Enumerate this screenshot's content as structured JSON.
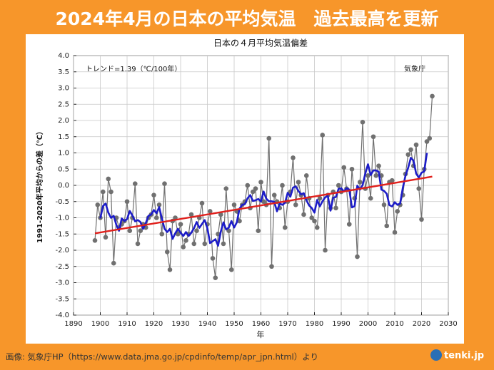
{
  "header": {
    "title": "2024年4月の日本の平均気温　過去最高を更新"
  },
  "footer": {
    "credit": "画像: 気象庁HP（https://www.data.jma.go.jp/cpdinfo/temp/apr_jpn.html）より",
    "logo": "tenki.jp"
  },
  "chart_data": {
    "type": "line",
    "title": "日本の４月平均気温偏差",
    "xlabel": "年",
    "ylabel": "1991-2020年平均からの差（℃）",
    "annotations": [
      "トレンド=1.39（℃/100年）",
      "気象庁"
    ],
    "xlim": [
      1890,
      2030
    ],
    "xticks": [
      1890,
      1900,
      1910,
      1920,
      1930,
      1940,
      1950,
      1960,
      1970,
      1980,
      1990,
      2000,
      2010,
      2020,
      2030
    ],
    "ylim": [
      -4,
      4
    ],
    "yticks": [
      {
        "value": 4,
        "label": "4.0"
      },
      3.5,
      {
        "value": 3,
        "label": "3.0"
      },
      2.5,
      {
        "value": 2,
        "label": "2.0"
      },
      1.5,
      {
        "value": 1,
        "label": "1.0"
      },
      0.5,
      {
        "value": 0,
        "label": "0.0"
      },
      -0.5,
      {
        "value": -1,
        "label": "-1.0"
      },
      -1.5,
      {
        "value": -2,
        "label": "-2.0"
      },
      -2.5,
      {
        "value": -3,
        "label": "-3.0"
      },
      -3.5,
      {
        "value": -4,
        "label": "-4.0"
      }
    ],
    "grid": true,
    "x": [
      1898,
      1899,
      1900,
      1901,
      1902,
      1903,
      1904,
      1905,
      1906,
      1907,
      1908,
      1909,
      1910,
      1911,
      1912,
      1913,
      1914,
      1915,
      1916,
      1917,
      1918,
      1919,
      1920,
      1921,
      1922,
      1923,
      1924,
      1925,
      1926,
      1927,
      1928,
      1929,
      1930,
      1931,
      1932,
      1933,
      1934,
      1935,
      1936,
      1937,
      1938,
      1939,
      1940,
      1941,
      1942,
      1943,
      1944,
      1945,
      1946,
      1947,
      1948,
      1949,
      1950,
      1951,
      1952,
      1953,
      1954,
      1955,
      1956,
      1957,
      1958,
      1959,
      1960,
      1961,
      1962,
      1963,
      1964,
      1965,
      1966,
      1967,
      1968,
      1969,
      1970,
      1971,
      1972,
      1973,
      1974,
      1975,
      1976,
      1977,
      1978,
      1979,
      1980,
      1981,
      1982,
      1983,
      1984,
      1985,
      1986,
      1987,
      1988,
      1989,
      1990,
      1991,
      1992,
      1993,
      1994,
      1995,
      1996,
      1997,
      1998,
      1999,
      2000,
      2001,
      2002,
      2003,
      2004,
      2005,
      2006,
      2007,
      2008,
      2009,
      2010,
      2011,
      2012,
      2013,
      2014,
      2015,
      2016,
      2017,
      2018,
      2019,
      2020,
      2021,
      2022,
      2023,
      2024
    ],
    "series": [
      {
        "color": "#707070",
        "marker": true,
        "width": 1.2,
        "values": [
          -1.7,
          -0.6,
          -1.0,
          -0.2,
          -1.6,
          0.2,
          -0.2,
          -2.4,
          -1.0,
          -1.3,
          -1.2,
          -1.1,
          -0.5,
          -1.4,
          -1.0,
          0.05,
          -1.8,
          -1.4,
          -1.2,
          -1.3,
          -1.0,
          -0.9,
          -0.3,
          -1.0,
          -0.6,
          -1.5,
          0.05,
          -2.05,
          -2.6,
          -1.1,
          -1.0,
          -1.5,
          -1.2,
          -1.9,
          -1.7,
          -1.5,
          -0.9,
          -1.8,
          -1.4,
          -1.0,
          -0.55,
          -1.8,
          -1.2,
          -0.8,
          -2.25,
          -2.85,
          -1.5,
          -0.9,
          -1.8,
          -0.1,
          -1.4,
          -2.6,
          -0.6,
          -0.8,
          -1.1,
          -0.6,
          -0.5,
          0.0,
          -0.7,
          -0.2,
          -0.1,
          -1.4,
          0.1,
          -0.5,
          -0.6,
          1.45,
          -2.5,
          -0.3,
          -0.5,
          -0.7,
          0.0,
          -1.3,
          -0.5,
          -0.2,
          0.85,
          -0.6,
          0.1,
          -0.3,
          -0.9,
          0.3,
          -0.4,
          -1.0,
          -1.1,
          -1.3,
          -0.4,
          1.55,
          -2.0,
          -0.3,
          -0.7,
          -0.2,
          -0.7,
          0.0,
          -0.2,
          0.55,
          -0.1,
          -1.2,
          0.5,
          -0.4,
          -2.2,
          0.1,
          1.95,
          -0.1,
          0.3,
          -0.4,
          1.5,
          0.3,
          0.6,
          0.3,
          -0.6,
          -1.25,
          0.1,
          0.15,
          -1.45,
          -0.8,
          -0.6,
          -0.3,
          0.35,
          0.95,
          1.1,
          0.6,
          1.25,
          -0.1,
          -1.05,
          0.5,
          1.35,
          1.45,
          2.75
        ]
      },
      {
        "color": "#1c1cc8",
        "marker": false,
        "width": 2.6,
        "values": [
          null,
          null,
          -1.02,
          -0.64,
          -0.56,
          -0.84,
          -1.0,
          -0.94,
          -1.22,
          -1.4,
          -1.02,
          -1.1,
          -1.04,
          -0.79,
          -0.93,
          -1.11,
          -1.07,
          -1.13,
          -1.34,
          -1.16,
          -0.94,
          -0.9,
          -0.76,
          -0.86,
          -0.67,
          -1.02,
          -1.34,
          -1.44,
          -1.34,
          -1.65,
          -1.48,
          -1.34,
          -1.46,
          -1.56,
          -1.44,
          -1.56,
          -1.46,
          -1.32,
          -1.13,
          -1.31,
          -1.19,
          -1.07,
          -1.32,
          -1.78,
          -1.72,
          -1.66,
          -1.86,
          -1.43,
          -1.14,
          -1.36,
          -1.3,
          -1.1,
          -1.3,
          -1.14,
          -0.72,
          -0.6,
          -0.58,
          -0.4,
          -0.3,
          -0.48,
          -0.46,
          -0.42,
          -0.5,
          -0.19,
          -0.41,
          -0.49,
          -0.49,
          -0.51,
          -0.8,
          -0.56,
          -0.6,
          -0.54,
          -0.23,
          -0.35,
          -0.07,
          -0.03,
          -0.17,
          -0.28,
          -0.24,
          -0.46,
          -0.62,
          -0.7,
          -0.84,
          -0.45,
          -0.65,
          -0.49,
          -0.37,
          -0.33,
          -0.78,
          -0.38,
          -0.36,
          -0.11,
          -0.09,
          -0.19,
          -0.09,
          -0.13,
          -0.68,
          -0.64,
          -0.01,
          -0.13,
          0.01,
          0.37,
          0.65,
          0.32,
          0.46,
          0.46,
          0.42,
          -0.13,
          -0.17,
          -0.26,
          -0.61,
          -0.65,
          -0.52,
          -0.6,
          -0.56,
          -0.08,
          0.3,
          0.54,
          0.85,
          0.76,
          0.36,
          0.24,
          0.39,
          0.43,
          1.0,
          null,
          null
        ]
      },
      {
        "color": "#e0201c",
        "marker": false,
        "width": 2.4,
        "x": [
          1898,
          2024
        ],
        "values": [
          -1.48,
          0.27
        ]
      }
    ]
  }
}
